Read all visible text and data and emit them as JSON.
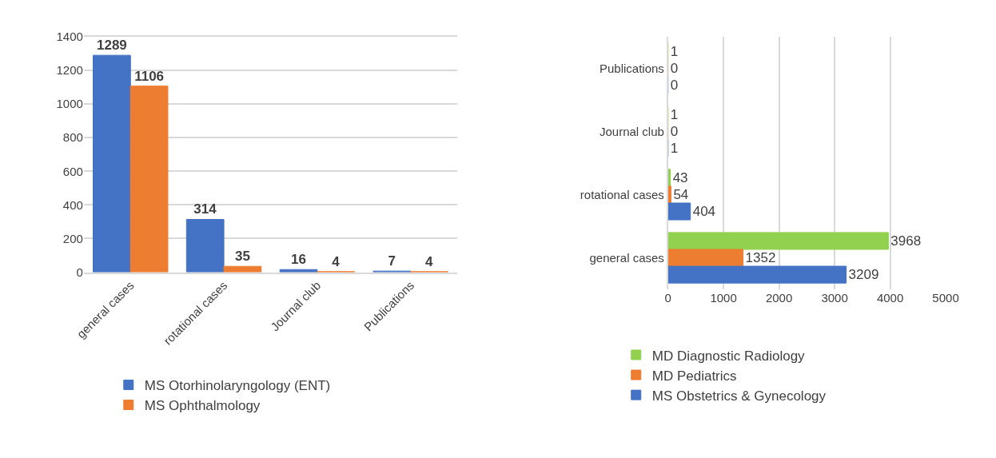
{
  "chart_data": [
    {
      "type": "bar",
      "categories": [
        "general cases",
        "rotational cases",
        "Journal club",
        "Publications"
      ],
      "series": [
        {
          "name": "MS Otorhinolaryngology (ENT)",
          "color": "#4472c4",
          "values": [
            1289,
            314,
            16,
            7
          ]
        },
        {
          "name": "MS Ophthalmology",
          "color": "#ed7d31",
          "values": [
            1106,
            35,
            4,
            4
          ]
        }
      ],
      "ylim": [
        0,
        1400
      ],
      "yticks": [
        0,
        200,
        400,
        600,
        800,
        1000,
        1200,
        1400
      ],
      "grid": "y",
      "legend": "bottom",
      "data_labels": true
    },
    {
      "type": "bar",
      "orientation": "horizontal",
      "categories": [
        "Publications",
        "Journal club",
        "rotational cases",
        "general cases"
      ],
      "series": [
        {
          "name": "MD Diagnostic Radiology",
          "color": "#92d050",
          "values": [
            1,
            1,
            43,
            3968
          ]
        },
        {
          "name": "MD Pediatrics",
          "color": "#ed7d31",
          "values": [
            0,
            0,
            54,
            1352
          ]
        },
        {
          "name": "MS Obstetrics & Gynecology",
          "color": "#4472c4",
          "values": [
            0,
            1,
            404,
            3209
          ]
        }
      ],
      "xlim": [
        0,
        5000
      ],
      "xticks": [
        0,
        1000,
        2000,
        3000,
        4000,
        5000
      ],
      "grid": "x",
      "legend": "bottom",
      "data_labels": true
    }
  ]
}
